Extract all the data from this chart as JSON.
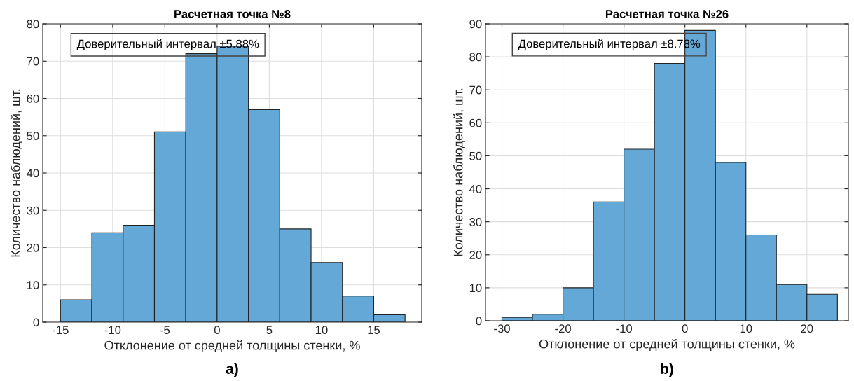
{
  "chart_data": [
    {
      "type": "histogram",
      "title": "Расчетная точка №8",
      "xlabel": "Отклонение от средней толщины стенки, %",
      "ylabel": "Количество наблюдений, шт.",
      "bins": [
        -15,
        -12,
        -9,
        -6,
        -3,
        0,
        3,
        6,
        9,
        12,
        15,
        18
      ],
      "values": [
        6,
        24,
        26,
        51,
        72,
        74,
        57,
        25,
        16,
        7,
        2
      ],
      "color": "#64a8d7",
      "xlim": [
        -16.7,
        19.6
      ],
      "xticks": [
        -15,
        -10,
        -5,
        0,
        5,
        10,
        15
      ],
      "ylim": [
        0,
        80
      ],
      "yticks": [
        0,
        10,
        20,
        30,
        40,
        50,
        60,
        70,
        80
      ],
      "grid": true,
      "annotations": [
        "Доверительный интервал ±5.88%",
        "a)"
      ]
    },
    {
      "type": "histogram",
      "title": "Расчетная точка №26",
      "xlabel": "Отклонение от средней толщины стенки, %",
      "ylabel": "Количество наблюдений, шт.",
      "bins": [
        -30,
        -25,
        -20,
        -15,
        -10,
        -5,
        0,
        5,
        10,
        15,
        20,
        25
      ],
      "values": [
        1,
        2,
        10,
        36,
        52,
        78,
        88,
        48,
        26,
        11,
        8
      ],
      "color": "#64a8d7",
      "xlim": [
        -32.7,
        26.8
      ],
      "xticks": [
        -30,
        -20,
        -10,
        0,
        10,
        20
      ],
      "ylim": [
        0,
        90
      ],
      "yticks": [
        0,
        10,
        20,
        30,
        40,
        50,
        60,
        70,
        80,
        90
      ],
      "grid": true,
      "annotations": [
        "Доверительный интервал ±8.78%",
        "b)"
      ]
    }
  ]
}
